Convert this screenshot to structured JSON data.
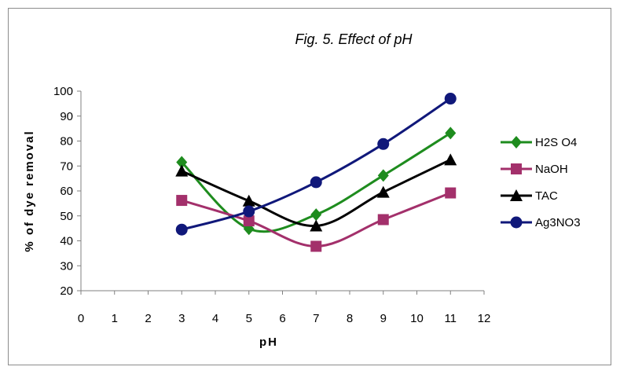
{
  "chart_data": {
    "type": "line",
    "title": "Fig. 5. Effect of pH",
    "xlabel": "pH",
    "ylabel": "% of dye removal",
    "xlim": [
      0,
      12
    ],
    "ylim": [
      20,
      100
    ],
    "x_ticks": [
      "0",
      "1",
      "2",
      "3",
      "4",
      "5",
      "6",
      "7",
      "8",
      "9",
      "10",
      "11",
      "12"
    ],
    "y_ticks": [
      "20",
      "30",
      "40",
      "50",
      "60",
      "70",
      "80",
      "90",
      "100"
    ],
    "x": [
      3,
      5,
      7,
      9,
      11
    ],
    "grid": false,
    "legend_position": "right",
    "series": [
      {
        "name": "H2S O4",
        "values": [
          71.5,
          44.8,
          50.5,
          66.2,
          83.2
        ],
        "color": "#1e8c1e",
        "marker": "diamond"
      },
      {
        "name": "NaOH",
        "values": [
          56.2,
          48.0,
          37.8,
          48.5,
          59.2
        ],
        "color": "#a3306b",
        "marker": "square"
      },
      {
        "name": "TAC",
        "values": [
          68.0,
          56.0,
          46.0,
          59.5,
          72.5
        ],
        "color": "#000000",
        "marker": "triangle"
      },
      {
        "name": "Ag3NO3",
        "values": [
          44.5,
          51.8,
          63.5,
          78.8,
          97.0
        ],
        "color": "#10187a",
        "marker": "circle"
      }
    ]
  }
}
